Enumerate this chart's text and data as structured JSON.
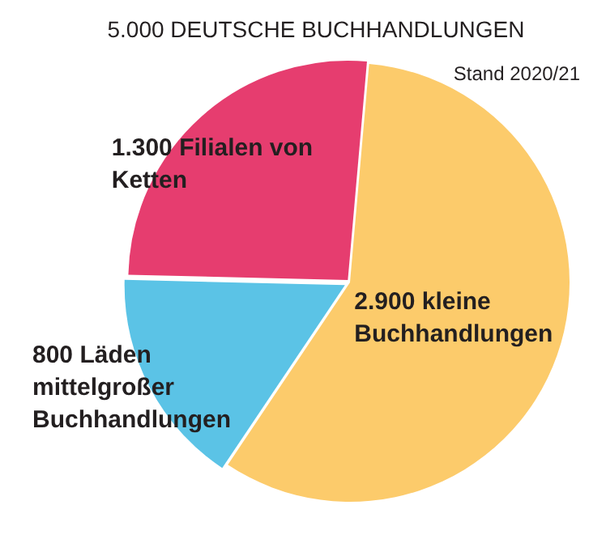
{
  "chart_data": {
    "type": "pie",
    "title": "5.000 DEUTSCHE BUCHHANDLUNGEN",
    "annotations": [
      "Stand 2020/21"
    ],
    "categories": [
      "2.900 kleine Buchhandlungen",
      "800 Läden mittelgroßer Buchhandlungen",
      "1.300 Filialen von Ketten"
    ],
    "values": [
      2900,
      800,
      1300
    ],
    "colors": [
      "#fccb6b",
      "#5bc3e6",
      "#e63d6f"
    ],
    "legend": false
  }
}
